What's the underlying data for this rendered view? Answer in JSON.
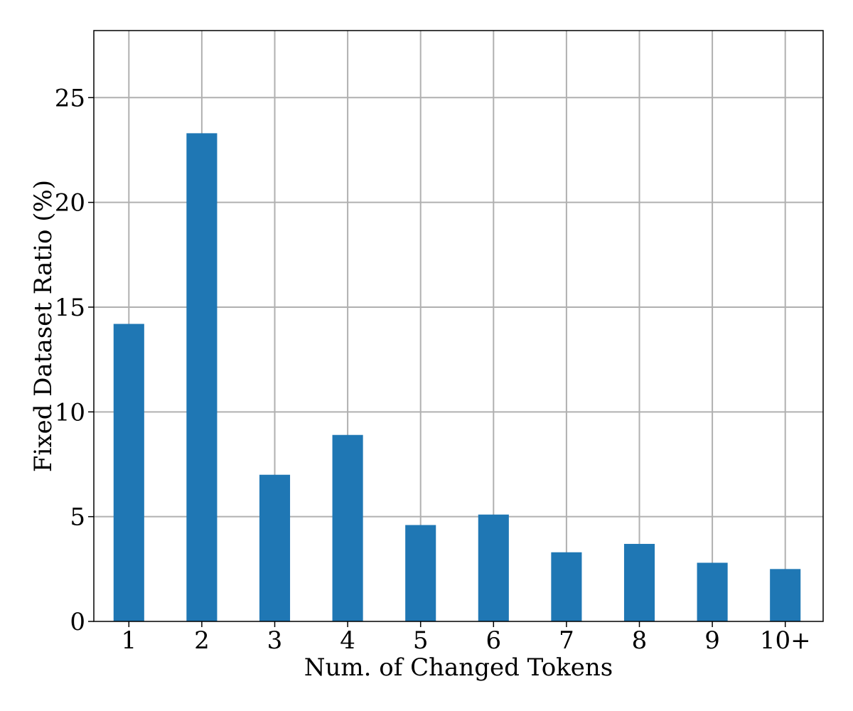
{
  "chart_data": {
    "type": "bar",
    "title": "",
    "xlabel": "Num. of Changed Tokens",
    "ylabel": "Fixed Dataset Ratio (%)",
    "categories": [
      "1",
      "2",
      "3",
      "4",
      "5",
      "6",
      "7",
      "8",
      "9",
      "10+"
    ],
    "values": [
      14.2,
      23.3,
      7.0,
      8.9,
      4.6,
      5.1,
      3.3,
      3.7,
      2.8,
      2.5
    ],
    "ylim": [
      0,
      28.2
    ],
    "yticks": [
      0,
      5,
      10,
      15,
      20,
      25
    ],
    "grid": true,
    "bar_color": "#1f77b4"
  }
}
